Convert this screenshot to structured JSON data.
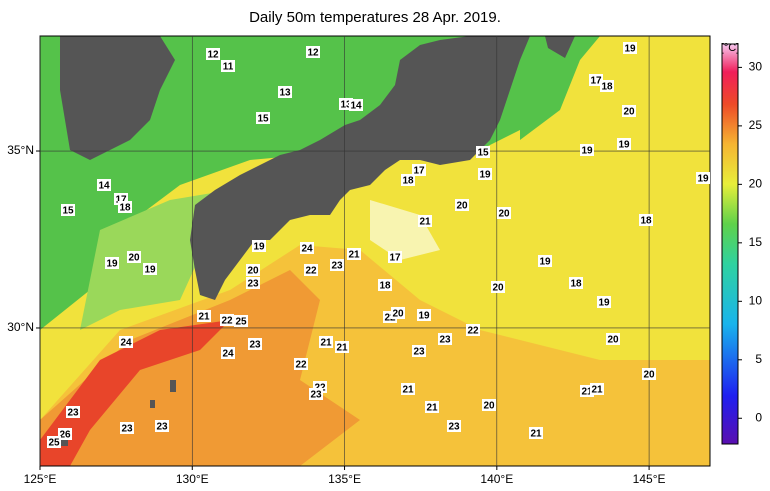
{
  "chart_data": {
    "type": "map",
    "title": "Daily 50m temperatures 28 Apr. 2019.",
    "xlim": [
      125,
      147
    ],
    "ylim": [
      26.1,
      38.25
    ],
    "xticks": [
      {
        "value": 125,
        "label": "125°E"
      },
      {
        "value": 130,
        "label": "130°E"
      },
      {
        "value": 135,
        "label": "135°E"
      },
      {
        "value": 140,
        "label": "140°E"
      },
      {
        "value": 145,
        "label": "145°E"
      }
    ],
    "yticks": [
      {
        "value": 30,
        "label": "30°N"
      },
      {
        "value": 35,
        "label": "35°N"
      }
    ],
    "grid": true,
    "colorbar": {
      "label": "[°C]",
      "lim": [
        -2.2,
        32
      ],
      "ticks": [
        0,
        5,
        10,
        15,
        20,
        25,
        30
      ]
    },
    "contour_labels": [
      12,
      11,
      12,
      13,
      15,
      13,
      14,
      14,
      17,
      18,
      15,
      19,
      20,
      19,
      19,
      24,
      21,
      20,
      23,
      22,
      23,
      17,
      18,
      22,
      20,
      19,
      21,
      22,
      25,
      24,
      24,
      23,
      21,
      21,
      22,
      22,
      23,
      23,
      23,
      22,
      21,
      21,
      23,
      20,
      21,
      21,
      21,
      20,
      20,
      19,
      20,
      18,
      19,
      18,
      19,
      17,
      18,
      20,
      19,
      19,
      15,
      19,
      17,
      18,
      20,
      20,
      21,
      19,
      23,
      26,
      25,
      23,
      23
    ]
  }
}
